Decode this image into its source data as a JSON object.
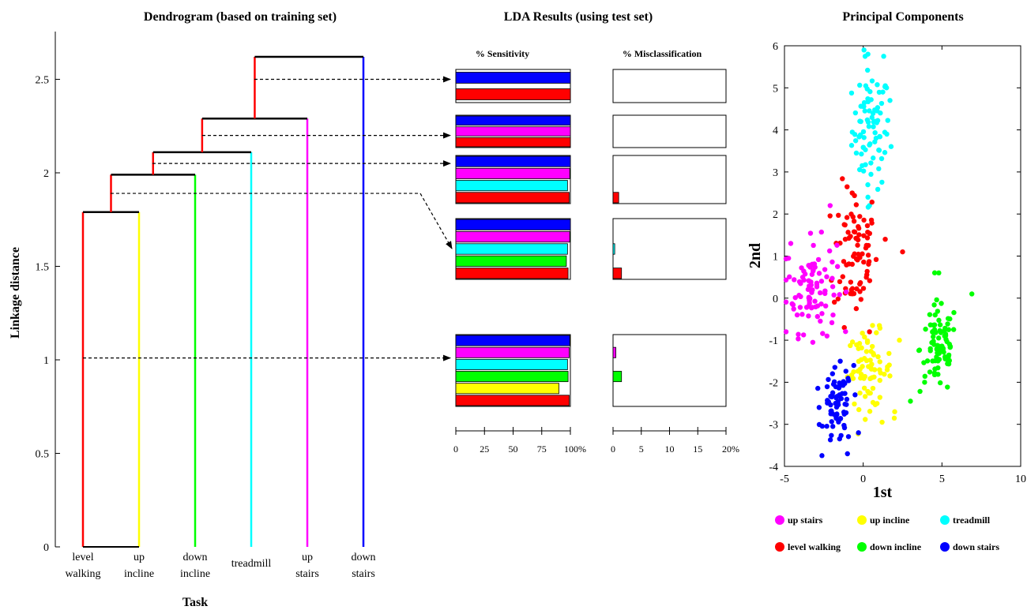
{
  "titles": {
    "dendrogram": "Dendrogram (based on training set)",
    "lda": "LDA Results (using test set)",
    "pca": "Principal Components"
  },
  "colors": {
    "level walking": "#ff0000",
    "up incline": "#ffff00",
    "down incline": "#00ff00",
    "treadmill": "#00ffff",
    "up stairs": "#ff00ff",
    "down stairs": "#0000ff"
  },
  "chart_data": [
    {
      "type": "dendrogram",
      "title": "Dendrogram (based on training set)",
      "xlabel": "Task",
      "ylabel": "Linkage distance",
      "ylim": [
        0,
        2.85
      ],
      "yticks": [
        "0",
        "0.5",
        "1",
        "1.5",
        "2",
        "2.5"
      ],
      "leaves": [
        {
          "key": "level walking",
          "label_lines": [
            "level",
            "walking"
          ]
        },
        {
          "key": "up incline",
          "label_lines": [
            "up",
            "incline"
          ]
        },
        {
          "key": "down incline",
          "label_lines": [
            "down",
            "incline"
          ]
        },
        {
          "key": "treadmill",
          "label_lines": [
            "treadmill"
          ]
        },
        {
          "key": "up stairs",
          "label_lines": [
            "up",
            "stairs"
          ]
        },
        {
          "key": "down stairs",
          "label_lines": [
            "down",
            "stairs"
          ]
        }
      ],
      "merges": [
        {
          "a": "level walking",
          "b": "up incline",
          "height": 1.79
        },
        {
          "a": "cluster-1",
          "b": "down incline",
          "height": 1.99
        },
        {
          "a": "cluster-2",
          "b": "treadmill",
          "height": 2.11
        },
        {
          "a": "cluster-3",
          "b": "up stairs",
          "height": 2.29
        },
        {
          "a": "cluster-4",
          "b": "down stairs",
          "height": 2.62
        }
      ],
      "cuts": [
        {
          "height": 2.5,
          "group": 0
        },
        {
          "height": 2.2,
          "group": 1
        },
        {
          "height": 2.05,
          "group": 2
        },
        {
          "height": 1.89,
          "group": 3
        },
        {
          "height": 1.01,
          "group": 4
        }
      ]
    },
    {
      "type": "bar",
      "title": "LDA Results (using test set)",
      "sensitivity_header": "% Sensitivity",
      "misclass_header": "% Misclassification",
      "sensitivity_ticks": [
        "0",
        "25",
        "50",
        "75",
        "100%"
      ],
      "misclass_ticks": [
        "0",
        "5",
        "10",
        "15",
        "20%"
      ],
      "sensitivity_max": 100,
      "misclass_max": 20,
      "groups": [
        {
          "bars": [
            {
              "task": "down stairs",
              "sensitivity": 100,
              "misclassification": 0
            },
            {
              "task": "level walking",
              "sensitivity": 100,
              "misclassification": 0
            }
          ]
        },
        {
          "bars": [
            {
              "task": "down stairs",
              "sensitivity": 100,
              "misclassification": 0
            },
            {
              "task": "up stairs",
              "sensitivity": 100,
              "misclassification": 0
            },
            {
              "task": "level walking",
              "sensitivity": 100,
              "misclassification": 0
            }
          ]
        },
        {
          "bars": [
            {
              "task": "down stairs",
              "sensitivity": 100,
              "misclassification": 0
            },
            {
              "task": "up stairs",
              "sensitivity": 99.5,
              "misclassification": 0
            },
            {
              "task": "treadmill",
              "sensitivity": 97.5,
              "misclassification": 0
            },
            {
              "task": "level walking",
              "sensitivity": 99,
              "misclassification": 1.0
            }
          ]
        },
        {
          "bars": [
            {
              "task": "down stairs",
              "sensitivity": 100,
              "misclassification": 0
            },
            {
              "task": "up stairs",
              "sensitivity": 99.5,
              "misclassification": 0
            },
            {
              "task": "treadmill",
              "sensitivity": 97.5,
              "misclassification": 0.3
            },
            {
              "task": "down incline",
              "sensitivity": 96.5,
              "misclassification": 0
            },
            {
              "task": "level walking",
              "sensitivity": 98,
              "misclassification": 1.5
            }
          ]
        },
        {
          "bars": [
            {
              "task": "down stairs",
              "sensitivity": 99.5,
              "misclassification": 0
            },
            {
              "task": "up stairs",
              "sensitivity": 99,
              "misclassification": 0.5
            },
            {
              "task": "treadmill",
              "sensitivity": 97.5,
              "misclassification": 0
            },
            {
              "task": "down incline",
              "sensitivity": 98,
              "misclassification": 1.5
            },
            {
              "task": "up incline",
              "sensitivity": 90,
              "misclassification": 0
            },
            {
              "task": "level walking",
              "sensitivity": 99,
              "misclassification": 0
            }
          ]
        }
      ]
    },
    {
      "type": "scatter",
      "title": "Principal Components",
      "xlabel": "1st",
      "ylabel": "2nd",
      "xlim": [
        -5,
        10
      ],
      "ylim": [
        -4,
        6
      ],
      "xticks": [
        "-5",
        "0",
        "5",
        "10"
      ],
      "yticks": [
        "-4",
        "-3",
        "-2",
        "-1",
        "0",
        "1",
        "2",
        "3",
        "4",
        "5",
        "6"
      ],
      "legend_rows": [
        [
          "up stairs",
          "up incline",
          "treadmill"
        ],
        [
          "level walking",
          "down incline",
          "down stairs"
        ]
      ],
      "clusters": [
        {
          "task": "treadmill",
          "center": [
            0.5,
            4.0
          ],
          "spread": [
            0.6,
            0.7
          ],
          "count": 80,
          "points": [
            [
              0.3,
              5.8
            ],
            [
              1.3,
              5.75
            ],
            [
              0.05,
              5.9
            ],
            [
              1.7,
              4.7
            ],
            [
              1.5,
              3.9
            ],
            [
              0.3,
              2.4
            ],
            [
              0.4,
              2.2
            ]
          ]
        },
        {
          "task": "level walking",
          "center": [
            -0.5,
            1.1
          ],
          "spread": [
            0.7,
            0.8
          ],
          "count": 80,
          "points": [
            [
              -0.7,
              2.5
            ],
            [
              1.4,
              1.4
            ],
            [
              2.5,
              1.1
            ],
            [
              -1.2,
              -0.7
            ],
            [
              0.4,
              -0.8
            ]
          ]
        },
        {
          "task": "up stairs",
          "center": [
            -3.3,
            0.3
          ],
          "spread": [
            0.8,
            0.55
          ],
          "count": 90,
          "points": [
            [
              -4.9,
              -0.8
            ],
            [
              -2.1,
              2.2
            ],
            [
              -3.2,
              -1.05
            ],
            [
              -4.6,
              1.3
            ],
            [
              -2.3,
              -0.9
            ]
          ]
        },
        {
          "task": "up incline",
          "center": [
            0.4,
            -1.7
          ],
          "spread": [
            0.7,
            0.45
          ],
          "count": 70,
          "points": [
            [
              2.3,
              -1.0
            ],
            [
              2.0,
              -2.7
            ],
            [
              1.2,
              -2.95
            ],
            [
              -0.3,
              -1.2
            ]
          ]
        },
        {
          "task": "down incline",
          "center": [
            4.8,
            -1.2
          ],
          "spread": [
            0.6,
            0.55
          ],
          "count": 80,
          "points": [
            [
              4.8,
              0.6
            ],
            [
              6.9,
              0.1
            ],
            [
              3.0,
              -2.45
            ],
            [
              3.9,
              -2.0
            ]
          ]
        },
        {
          "task": "down stairs",
          "center": [
            -1.6,
            -2.6
          ],
          "spread": [
            0.45,
            0.45
          ],
          "count": 70,
          "points": [
            [
              -1.0,
              -3.7
            ],
            [
              -0.3,
              -3.2
            ],
            [
              -2.8,
              -2.6
            ],
            [
              -0.6,
              -1.6
            ]
          ]
        }
      ]
    }
  ]
}
